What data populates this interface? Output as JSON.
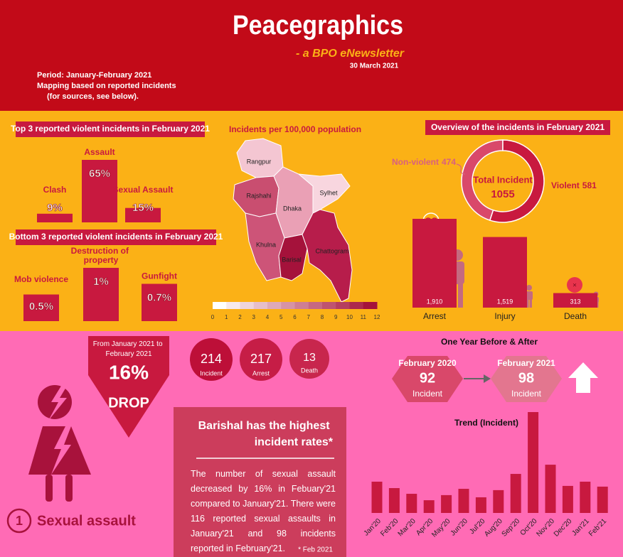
{
  "header": {
    "title": "Peacegraphics",
    "subtitle": "- a BPO eNewsletter",
    "date": "30 March 2021",
    "period": "Period: January-February 2021",
    "mapping": "Mapping based on reported incidents",
    "sources": "(for sources, see below)."
  },
  "map": {
    "title": "Incidents per 100,000 population",
    "regions": [
      "Rangpur",
      "Rajshahi",
      "Dhaka",
      "Sylhet",
      "Khulna",
      "Barisal",
      "Chattogram"
    ],
    "scale": [
      0,
      1,
      2,
      3,
      4,
      5,
      6,
      7,
      8,
      9,
      10,
      11,
      12
    ]
  },
  "drop": {
    "text": "From January 2021 to February 2021",
    "value": 16,
    "label": "16%",
    "word": "DROP"
  },
  "stats": [
    {
      "value": 214,
      "label": "Incident"
    },
    {
      "value": 217,
      "label": "Arrest"
    },
    {
      "value": 13,
      "label": "Death"
    }
  ],
  "compare": {
    "title": "One Year Before & After",
    "before": {
      "period": "February 2020",
      "value": 92,
      "label": "Incident"
    },
    "after": {
      "period": "February 2021",
      "value": 98,
      "label": "Incident"
    }
  },
  "highlight": {
    "title": "Barishal has the highest incident rates*",
    "body": "The number of sexual assault decreased by 16% in Febuary'21 compared to January'21. There were 116 reported sexual assaults in January'21 and 98 incidents reported in February'21.",
    "footnote": "* Feb 2021"
  },
  "category": {
    "number": "1",
    "label": "Sexual assault"
  },
  "chart_data": [
    {
      "type": "bar",
      "title": "Top 3 reported violent incidents in February 2021",
      "categories": [
        "Clash",
        "Assault",
        "Sexual Assault"
      ],
      "values": [
        9,
        65,
        15
      ],
      "value_labels": [
        "9%",
        "65%",
        "15%"
      ],
      "color": "#c8193f"
    },
    {
      "type": "bar",
      "title": "Bottom 3 reported violent incidents in February 2021",
      "categories": [
        "Mob violence",
        "Destruction of property",
        "Gunfight"
      ],
      "values": [
        0.5,
        1,
        0.7
      ],
      "value_labels": [
        "0.5%",
        "1%",
        "0.7%"
      ],
      "color": "#c8193f"
    },
    {
      "type": "pie",
      "donut": true,
      "title": "Overview of the incidents in February 2021",
      "center_label": "Total Incident",
      "total": 1055,
      "categories": [
        "Non-violent",
        "Violent"
      ],
      "values": [
        474,
        581
      ],
      "colors": [
        "#d9486a",
        "#c8193f"
      ]
    },
    {
      "type": "bar",
      "categories": [
        "Arrest",
        "Injury",
        "Death"
      ],
      "values": [
        1910,
        1519,
        313
      ],
      "value_labels": [
        "1,910",
        "1,519",
        "313"
      ],
      "color": "#c8193f"
    },
    {
      "type": "bar",
      "title": "Trend (Incident)",
      "categories": [
        "Jan'20",
        "Feb'20",
        "Mar'20",
        "Apr'20",
        "May'20",
        "Jun'20",
        "Jul'20",
        "Aug'20",
        "Sep'20",
        "Oct'20",
        "Nov'20",
        "Dec'20",
        "Jan'21",
        "Feb'21"
      ],
      "values": [
        214,
        170,
        131,
        87,
        122,
        165,
        107,
        156,
        267,
        690,
        330,
        185,
        214,
        180
      ],
      "color": "#c8193f"
    }
  ]
}
